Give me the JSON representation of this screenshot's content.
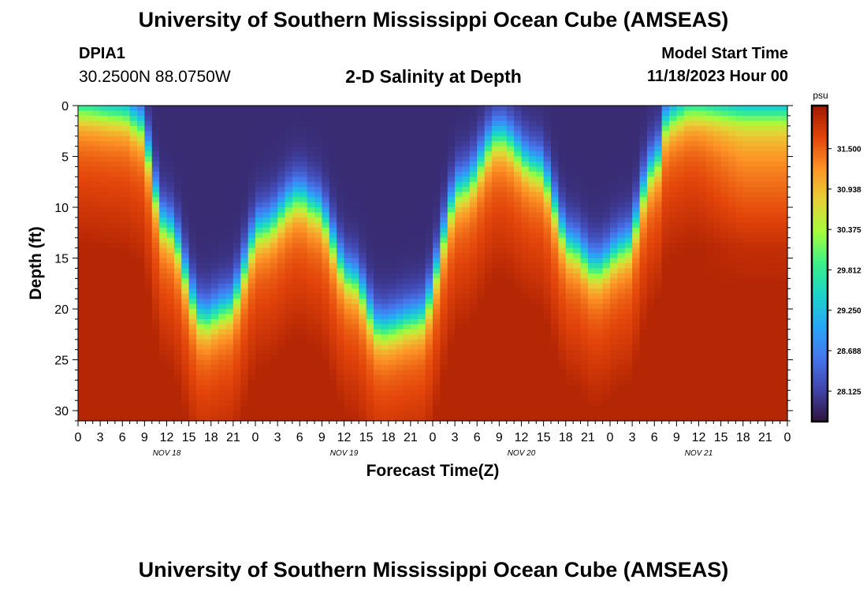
{
  "header": {
    "title": "University of Southern Mississippi Ocean Cube (AMSEAS)",
    "station": "DPIA1",
    "coords": "30.2500N  88.0750W",
    "subtitle": "2-D Salinity at Depth",
    "model_start_label": "Model Start Time",
    "model_start_value": "11/18/2023 Hour 00"
  },
  "footer": {
    "title": "University of Southern Mississippi Ocean Cube (AMSEAS)"
  },
  "colors": {
    "low": "#30123b",
    "mid": "#28bceb",
    "high": "#a11a02"
  },
  "chart_data": {
    "type": "heatmap",
    "title": "2-D Salinity at Depth",
    "xlabel": "Forecast Time(Z)",
    "ylabel": "Depth (ft)",
    "x_hours_range": [
      0,
      96
    ],
    "y_range": [
      0,
      31
    ],
    "y_ticks": [
      0,
      5,
      10,
      15,
      20,
      25,
      30
    ],
    "x_tick_labels": [
      "0",
      "3",
      "6",
      "9",
      "12",
      "15",
      "18",
      "21",
      "0",
      "3",
      "6",
      "9",
      "12",
      "15",
      "18",
      "21",
      "0",
      "3",
      "6",
      "9",
      "12",
      "15",
      "18",
      "21",
      "0",
      "3",
      "6",
      "9",
      "12",
      "15",
      "18",
      "21",
      "0"
    ],
    "date_labels": [
      {
        "hour": 12,
        "label": "NOV 18"
      },
      {
        "hour": 36,
        "label": "NOV 19"
      },
      {
        "hour": 60,
        "label": "NOV 20"
      },
      {
        "hour": 84,
        "label": "NOV 21"
      }
    ],
    "colorbar": {
      "unit": "psu",
      "vmin": 27.7,
      "vmax": 32.1,
      "tick_labels": [
        "31.500",
        "30.938",
        "30.375",
        "29.812",
        "29.250",
        "28.688",
        "28.125"
      ]
    },
    "field_description": {
      "fresh_layer_interface_depth_ft": [
        {
          "hour": 0,
          "depth": 0
        },
        {
          "hour": 6,
          "depth": 0.5
        },
        {
          "hour": 8,
          "depth": 1.5
        },
        {
          "hour": 12,
          "depth": 12
        },
        {
          "hour": 17,
          "depth": 21
        },
        {
          "hour": 20,
          "depth": 20
        },
        {
          "hour": 25,
          "depth": 12
        },
        {
          "hour": 30,
          "depth": 9
        },
        {
          "hour": 32,
          "depth": 10
        },
        {
          "hour": 37,
          "depth": 17
        },
        {
          "hour": 41,
          "depth": 22
        },
        {
          "hour": 46,
          "depth": 21
        },
        {
          "hour": 52,
          "depth": 8
        },
        {
          "hour": 57,
          "depth": 3
        },
        {
          "hour": 62,
          "depth": 6
        },
        {
          "hour": 67,
          "depth": 14
        },
        {
          "hour": 70,
          "depth": 16
        },
        {
          "hour": 74,
          "depth": 14
        },
        {
          "hour": 78,
          "depth": 6
        },
        {
          "hour": 80,
          "depth": 1
        },
        {
          "hour": 83,
          "depth": 0
        },
        {
          "hour": 96,
          "depth": 0
        }
      ]
    }
  }
}
